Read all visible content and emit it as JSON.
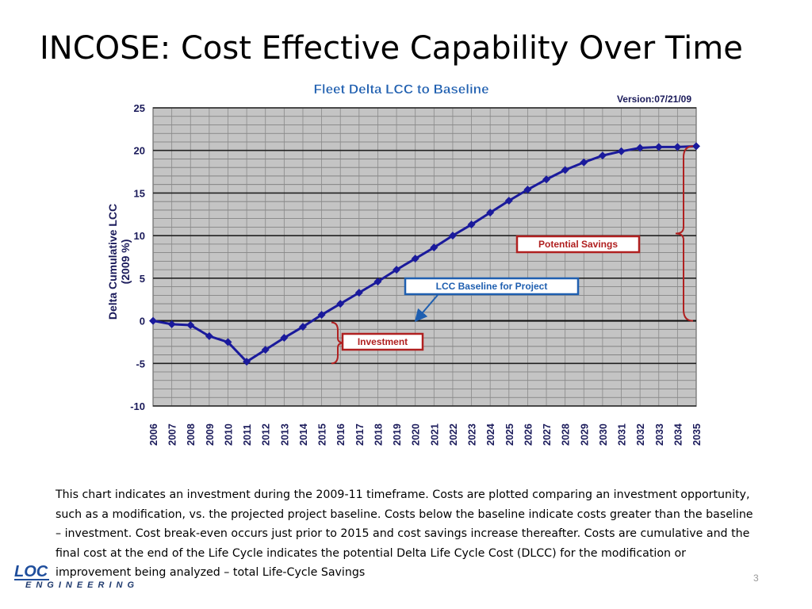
{
  "slide": {
    "title": "INCOSE: Cost Effective Capability Over Time",
    "caption": "This chart indicates an investment during the 2009-11 timeframe. Costs are plotted comparing an investment opportunity, such as a modification, vs. the projected project baseline. Costs below the baseline indicate costs greater than the baseline – investment. Cost break-even occurs just prior to 2015 and cost savings increase thereafter. Costs are cumulative and the final cost at the end of the Life Cycle indicates the potential Delta Life Cycle Cost (DLCC) for the modification or improvement being analyzed – total Life-Cycle Savings",
    "logo_main": "LOC",
    "logo_sub": "ENGINEERING",
    "page_number": "3"
  },
  "chart_data": {
    "type": "line",
    "title": "Fleet Delta LCC to Baseline",
    "version": "Version:07/21/09",
    "ylabel": "Delta Cumulative LCC (2009 %)",
    "xlabel": "",
    "ylim": [
      -10,
      25
    ],
    "yticks": [
      25,
      20,
      15,
      10,
      5,
      0,
      -5,
      -10
    ],
    "grid": true,
    "x": [
      "2006",
      "2007",
      "2008",
      "2009",
      "2010",
      "2011",
      "2012",
      "2013",
      "2014",
      "2015",
      "2016",
      "2017",
      "2018",
      "2019",
      "2020",
      "2021",
      "2022",
      "2023",
      "2024",
      "2025",
      "2026",
      "2027",
      "2028",
      "2029",
      "2030",
      "2031",
      "2032",
      "2033",
      "2034",
      "2035"
    ],
    "series": [
      {
        "values": [
          0,
          -0.4,
          -0.5,
          -1.8,
          -2.5,
          -4.8,
          -3.4,
          -2.0,
          -0.7,
          0.7,
          2.0,
          3.3,
          4.6,
          6.0,
          7.3,
          8.6,
          10.0,
          11.3,
          12.7,
          14.1,
          15.4,
          16.6,
          17.7,
          18.6,
          19.4,
          19.9,
          20.3,
          20.4,
          20.4,
          20.5
        ],
        "color": "#1a1a9c"
      }
    ],
    "annotations": [
      {
        "text": "Potential Savings",
        "color": "#b02020"
      },
      {
        "text": "LCC Baseline for Project",
        "color": "#1f5fb0"
      },
      {
        "text": "Investment",
        "color": "#b02020"
      }
    ],
    "plot_background": "#c4c4c4"
  }
}
